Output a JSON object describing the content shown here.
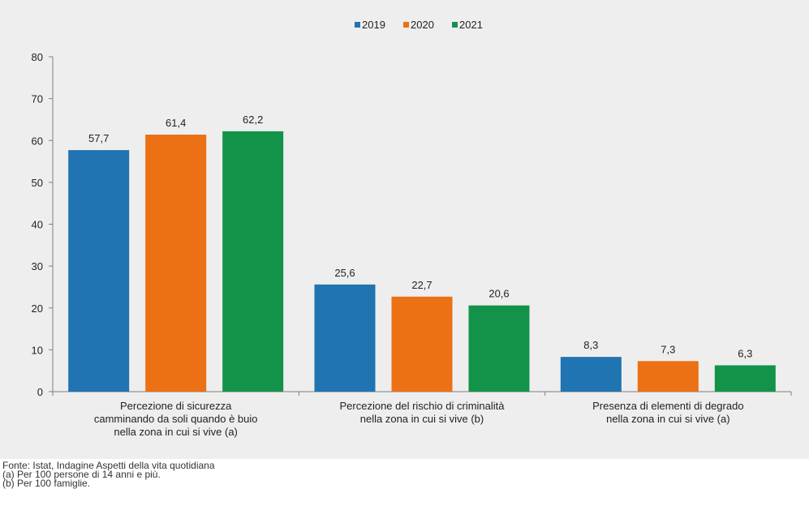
{
  "chart_data": {
    "type": "bar",
    "categories": [
      [
        "Percezione di sicurezza",
        "camminando da soli quando è buio",
        "nella zona in cui si vive (a)"
      ],
      [
        "Percezione del rischio di criminalità",
        "nella zona in cui si vive (b)"
      ],
      [
        "Presenza di elementi di degrado",
        "nella zona in cui si vive (a)"
      ]
    ],
    "series": [
      {
        "name": "2019",
        "color": "#1f74b1",
        "values": [
          57.7,
          25.6,
          8.3
        ],
        "labels": [
          "57,7",
          "25,6",
          "8,3"
        ]
      },
      {
        "name": "2020",
        "color": "#ec7014",
        "values": [
          61.4,
          22.7,
          7.3
        ],
        "labels": [
          "61,4",
          "22,7",
          "7,3"
        ]
      },
      {
        "name": "2021",
        "color": "#13934a",
        "values": [
          62.2,
          20.6,
          6.3
        ],
        "labels": [
          "62,2",
          "20,6",
          "6,3"
        ]
      }
    ],
    "ylim": [
      0,
      80
    ],
    "yticks": [
      0,
      10,
      20,
      30,
      40,
      50,
      60,
      70,
      80
    ],
    "grid": false,
    "legend": "top-center",
    "background": "#eeeeee"
  },
  "footnotes": {
    "source": "Fonte: Istat, Indagine Aspetti della vita quotidiana",
    "note_a": "(a) Per 100 persone di 14 anni e più.",
    "note_b": "(b) Per 100 famiglie."
  }
}
